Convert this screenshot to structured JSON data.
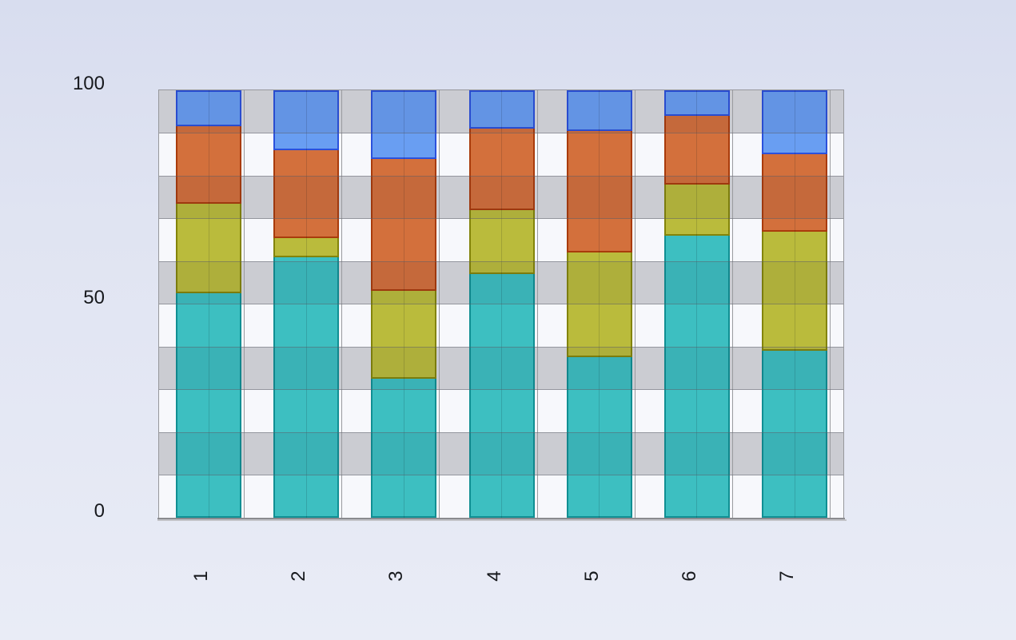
{
  "chart_data": {
    "type": "bar",
    "stacked": true,
    "stacking": "percent-like,每 bar totals 100",
    "title": "",
    "xlabel": "",
    "ylabel": "",
    "legend": "none",
    "categories": [
      "1",
      "2",
      "3",
      "4",
      "5",
      "6",
      "7"
    ],
    "series": [
      {
        "name": "teal",
        "color": "#3dbfc1",
        "border": "#108f93",
        "values": [
          52.5,
          61,
          32.5,
          57,
          37.5,
          66,
          39
        ]
      },
      {
        "name": "olive",
        "color": "#babb3c",
        "border": "#83840a",
        "values": [
          21,
          4.5,
          20.5,
          15,
          24.5,
          12,
          28
        ]
      },
      {
        "name": "orange",
        "color": "#d3703c",
        "border": "#a93b0b",
        "values": [
          18,
          20.5,
          31,
          19,
          28.5,
          16,
          18
        ]
      },
      {
        "name": "blue",
        "color": "#699ef2",
        "border": "#2b51dc",
        "values": [
          8.5,
          14,
          16,
          9,
          9.5,
          6,
          15
        ]
      }
    ],
    "ylim": [
      0,
      100
    ],
    "y_ticks": [
      100,
      50,
      0
    ],
    "y_tick_labels": [
      "100",
      "50",
      "0"
    ],
    "grid": {
      "horizontal_bands": 10,
      "band_step_value": 10,
      "band_colors_top_first": [
        "#dadbdf",
        "#f7f8fc"
      ],
      "gridlines": "thin gray lines at every band boundary, visible through translucent bars"
    }
  }
}
